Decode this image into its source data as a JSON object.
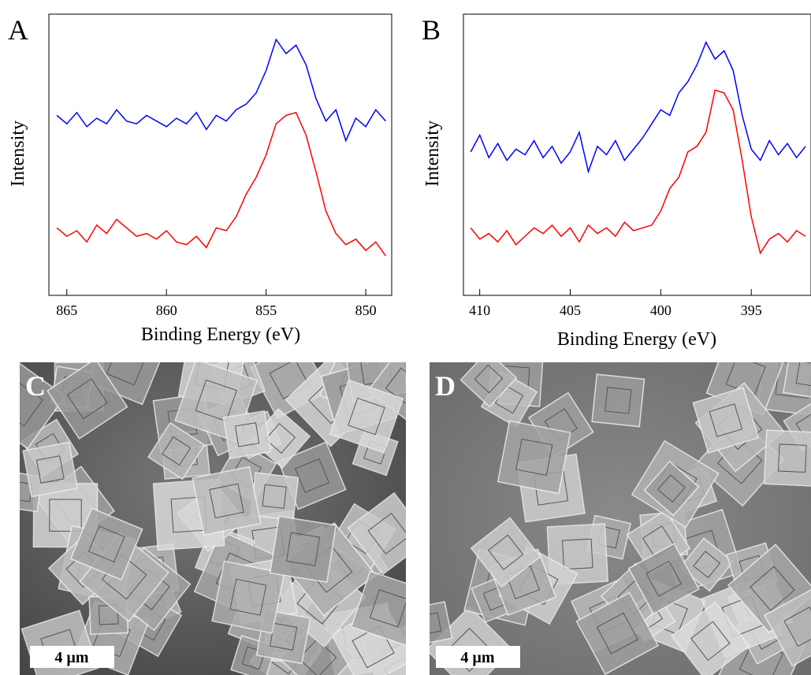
{
  "chart_data": [
    {
      "type": "line",
      "panel_label": "A",
      "x_label": "Binding Energy (eV)",
      "y_label": "Intensity",
      "x": [
        865.5,
        865,
        864.5,
        864,
        863.5,
        863,
        862.5,
        862,
        861.5,
        861,
        860.5,
        860,
        859.5,
        859,
        858.5,
        858,
        857.5,
        857,
        856.5,
        856,
        855.5,
        855,
        854.5,
        854,
        853.5,
        853,
        852.5,
        852,
        851.5,
        851,
        850.5,
        850,
        849.5,
        849
      ],
      "xlim": [
        865.9,
        848.7
      ],
      "xticks": [
        865,
        860,
        855,
        850
      ],
      "ylim": [
        0,
        100
      ],
      "series": [
        {
          "color": "#0000ff",
          "values": [
            64,
            61,
            65,
            60,
            63,
            61,
            66,
            62,
            61,
            64,
            62,
            60,
            63,
            61,
            65,
            59,
            64,
            62,
            66,
            68,
            72,
            80,
            91,
            86,
            89,
            82,
            70,
            62,
            66,
            55,
            63,
            60,
            66,
            62
          ]
        },
        {
          "color": "#ff0000",
          "values": [
            24,
            21,
            23,
            19,
            25,
            22,
            27,
            24,
            21,
            22,
            20,
            23,
            19,
            18,
            21,
            17,
            24,
            23,
            28,
            36,
            42,
            50,
            61,
            64,
            65,
            57,
            44,
            30,
            22,
            18,
            20,
            16,
            19,
            14
          ]
        }
      ]
    },
    {
      "type": "line",
      "panel_label": "B",
      "x_label": "Binding Energy (eV)",
      "y_label": "Intensity",
      "x": [
        410.5,
        410,
        409.5,
        409,
        408.5,
        408,
        407.5,
        407,
        406.5,
        406,
        405.5,
        405,
        404.5,
        404,
        403.5,
        403,
        402.5,
        402,
        401.5,
        401,
        400.5,
        400,
        399.5,
        399,
        398.5,
        398,
        397.5,
        397,
        396.5,
        396,
        395.5,
        395,
        394.5,
        394,
        393.5,
        393,
        392.5,
        392
      ],
      "xlim": [
        410.9,
        391.7
      ],
      "xticks": [
        410,
        405,
        400,
        395
      ],
      "ylim": [
        0,
        100
      ],
      "series": [
        {
          "color": "#0000ff",
          "values": [
            51,
            57,
            49,
            54,
            48,
            52,
            50,
            55,
            49,
            53,
            47,
            51,
            58,
            44,
            53,
            50,
            55,
            48,
            52,
            56,
            61,
            66,
            64,
            72,
            76,
            82,
            90,
            84,
            87,
            80,
            64,
            52,
            48,
            55,
            50,
            54,
            49,
            53
          ]
        },
        {
          "color": "#ff0000",
          "values": [
            24,
            20,
            22,
            19,
            23,
            18,
            21,
            24,
            22,
            25,
            21,
            24,
            19,
            25,
            22,
            24,
            21,
            26,
            23,
            24,
            25,
            30,
            38,
            42,
            51,
            53,
            58,
            73,
            72,
            66,
            48,
            28,
            15,
            20,
            22,
            19,
            23,
            21
          ]
        }
      ]
    }
  ],
  "images": [
    {
      "panel_label": "C",
      "scale_bar": "4 µm"
    },
    {
      "panel_label": "D",
      "scale_bar": "4 µm"
    }
  ]
}
